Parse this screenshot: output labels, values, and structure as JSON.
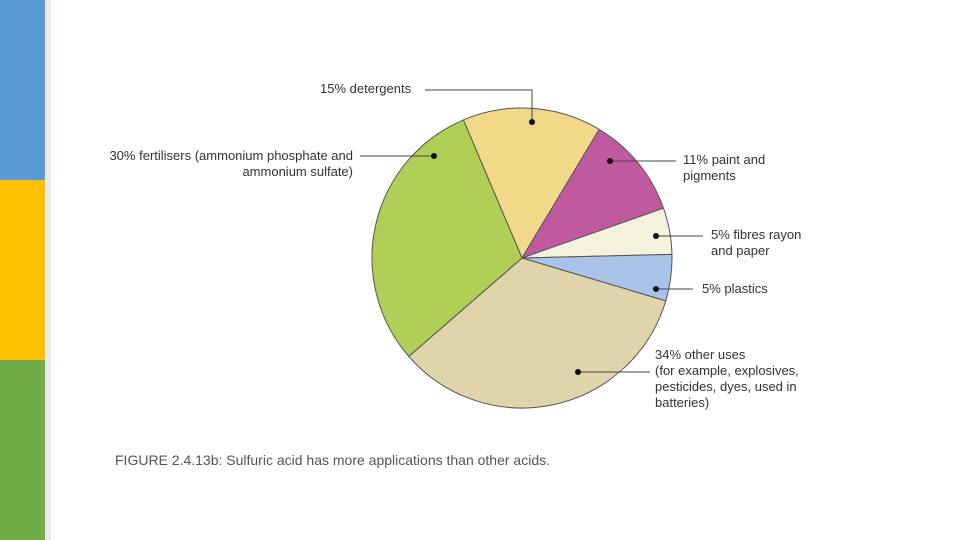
{
  "caption": "FIGURE 2.4.13b: Sulfuric acid has more applications than other acids.",
  "chart_data": {
    "type": "pie",
    "categories": [
      "detergents",
      "paint and pigments",
      "fibres rayon and paper",
      "plastics",
      "other uses",
      "fertilisers (ammonium phosphate and ammonium sulfate)"
    ],
    "values": [
      15,
      11,
      5,
      5,
      34,
      30
    ],
    "value_labels": [
      "15%",
      "11%",
      "5%",
      "5%",
      "34%",
      "30%"
    ],
    "colors": [
      "#f2d98a",
      "#c05aa0",
      "#f4f1dd",
      "#a9c4e8",
      "#dfd4aa",
      "#b0cf56"
    ],
    "annotations": [
      "(for example, explosives, pesticides, dyes, used in batteries)"
    ]
  }
}
